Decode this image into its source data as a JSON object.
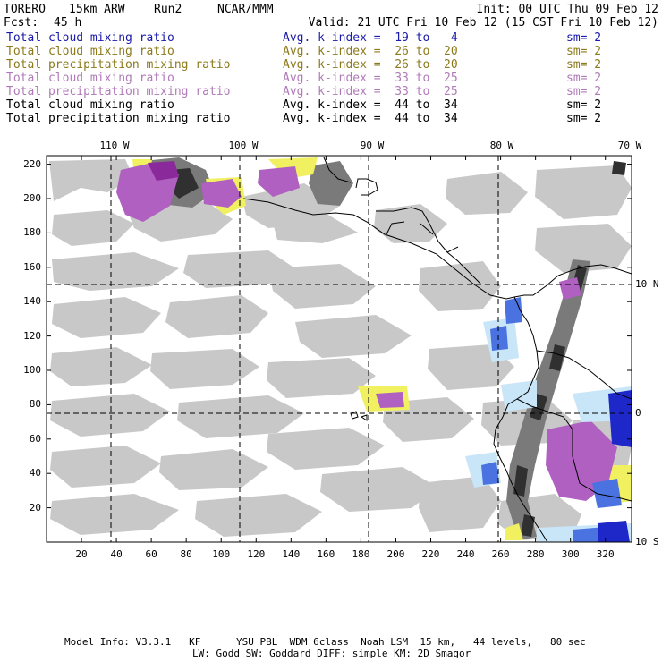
{
  "header": {
    "model": "TORERO",
    "resolution": "15km ARW",
    "run": "Run2",
    "org": "NCAR/MMM",
    "init": "Init: 00 UTC Thu 09 Feb 12",
    "fcst_label": "Fcst:",
    "fcst_value": "45 h",
    "valid": "Valid: 21 UTC Fri 10 Feb 12 (15 CST Fri 10 Feb 12)"
  },
  "legend": [
    {
      "field": "Total cloud mixing ratio",
      "kindex": "Avg. k-index =  19 to   4",
      "sm": "sm= 2",
      "color": "#1a1aaa"
    },
    {
      "field": "Total cloud mixing ratio",
      "kindex": "Avg. k-index =  26 to  20",
      "sm": "sm= 2",
      "color": "#8c7a1c"
    },
    {
      "field": "Total precipitation mixing ratio",
      "kindex": "Avg. k-index =  26 to  20",
      "sm": "sm= 2",
      "color": "#8c7a1c"
    },
    {
      "field": "Total cloud mixing ratio",
      "kindex": "Avg. k-index =  33 to  25",
      "sm": "sm= 2",
      "color": "#b07ab8"
    },
    {
      "field": "Total precipitation mixing ratio",
      "kindex": "Avg. k-index =  33 to  25",
      "sm": "sm= 2",
      "color": "#b07ab8"
    },
    {
      "field": "Total cloud mixing ratio",
      "kindex": "Avg. k-index =  44 to  34",
      "sm": "sm= 2",
      "color": "#000000"
    },
    {
      "field": "Total precipitation mixing ratio",
      "kindex": "Avg. k-index =  44 to  34",
      "sm": "sm= 2",
      "color": "#000000"
    }
  ],
  "axes": {
    "top_lon": [
      "110 W",
      "100 W",
      "90 W",
      "80 W",
      "70 W"
    ],
    "right_lat": [
      "10 N",
      "0",
      "10 S"
    ],
    "left_ticks": [
      220,
      200,
      180,
      160,
      140,
      120,
      100,
      80,
      60,
      40,
      20
    ],
    "bottom_ticks": [
      20,
      40,
      60,
      80,
      100,
      120,
      140,
      160,
      180,
      200,
      220,
      240,
      260,
      280,
      300,
      320
    ],
    "grid_max_x": 335,
    "grid_max_y": 225
  },
  "colors": {
    "grey_light": "#c8c8c8",
    "grey_dark": "#7a7a7a",
    "grey_black": "#303030",
    "yellow": "#f0f060",
    "purple": "#b060c0",
    "purple_dark": "#8a2a9a",
    "light_blue": "#c8e6f8",
    "blue": "#4a72e0",
    "dark_blue": "#1e28c8"
  },
  "footer": {
    "line1": "Model Info: V3.3.1   KF      YSU PBL  WDM 6class  Noah LSM  15 km,   44 levels,   80 sec",
    "line2": "LW: Godd SW: Goddard DIFF: simple KM: 2D Smagor"
  }
}
